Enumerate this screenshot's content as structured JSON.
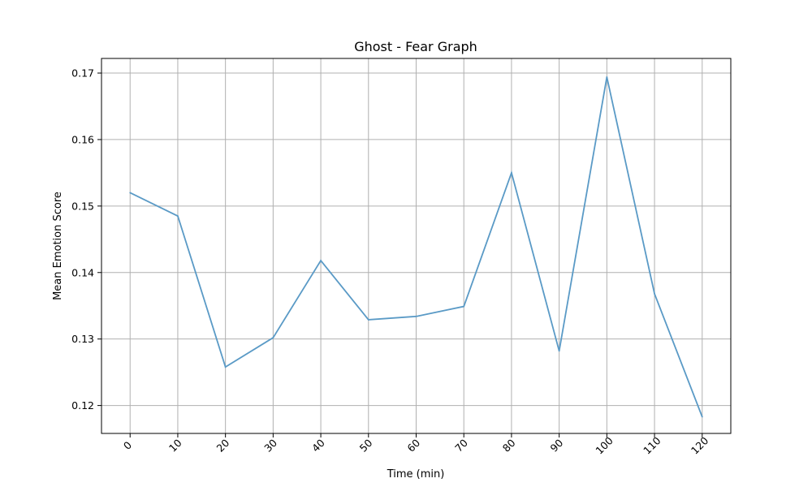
{
  "chart_data": {
    "type": "line",
    "title": "Ghost - Fear Graph",
    "xlabel": "Time (min)",
    "ylabel": "Mean Emotion Score",
    "x": [
      0,
      10,
      20,
      30,
      40,
      50,
      60,
      70,
      80,
      90,
      100,
      110,
      120
    ],
    "xticks": [
      "0",
      "10",
      "20",
      "30",
      "40",
      "50",
      "60",
      "70",
      "80",
      "90",
      "100",
      "110",
      "120"
    ],
    "yticks": [
      "0.12",
      "0.13",
      "0.14",
      "0.15",
      "0.16",
      "0.17"
    ],
    "ytick_values": [
      0.12,
      0.13,
      0.14,
      0.15,
      0.16,
      0.17
    ],
    "xlim": [
      -6,
      126
    ],
    "ylim": [
      0.1158,
      0.1722
    ],
    "grid": true,
    "series": [
      {
        "values": [
          0.152,
          0.1485,
          0.1258,
          0.1302,
          0.1418,
          0.1329,
          0.1334,
          0.1349,
          0.155,
          0.1282,
          0.1694,
          0.1368,
          0.1183
        ],
        "color": "#5a9ac6"
      }
    ]
  }
}
